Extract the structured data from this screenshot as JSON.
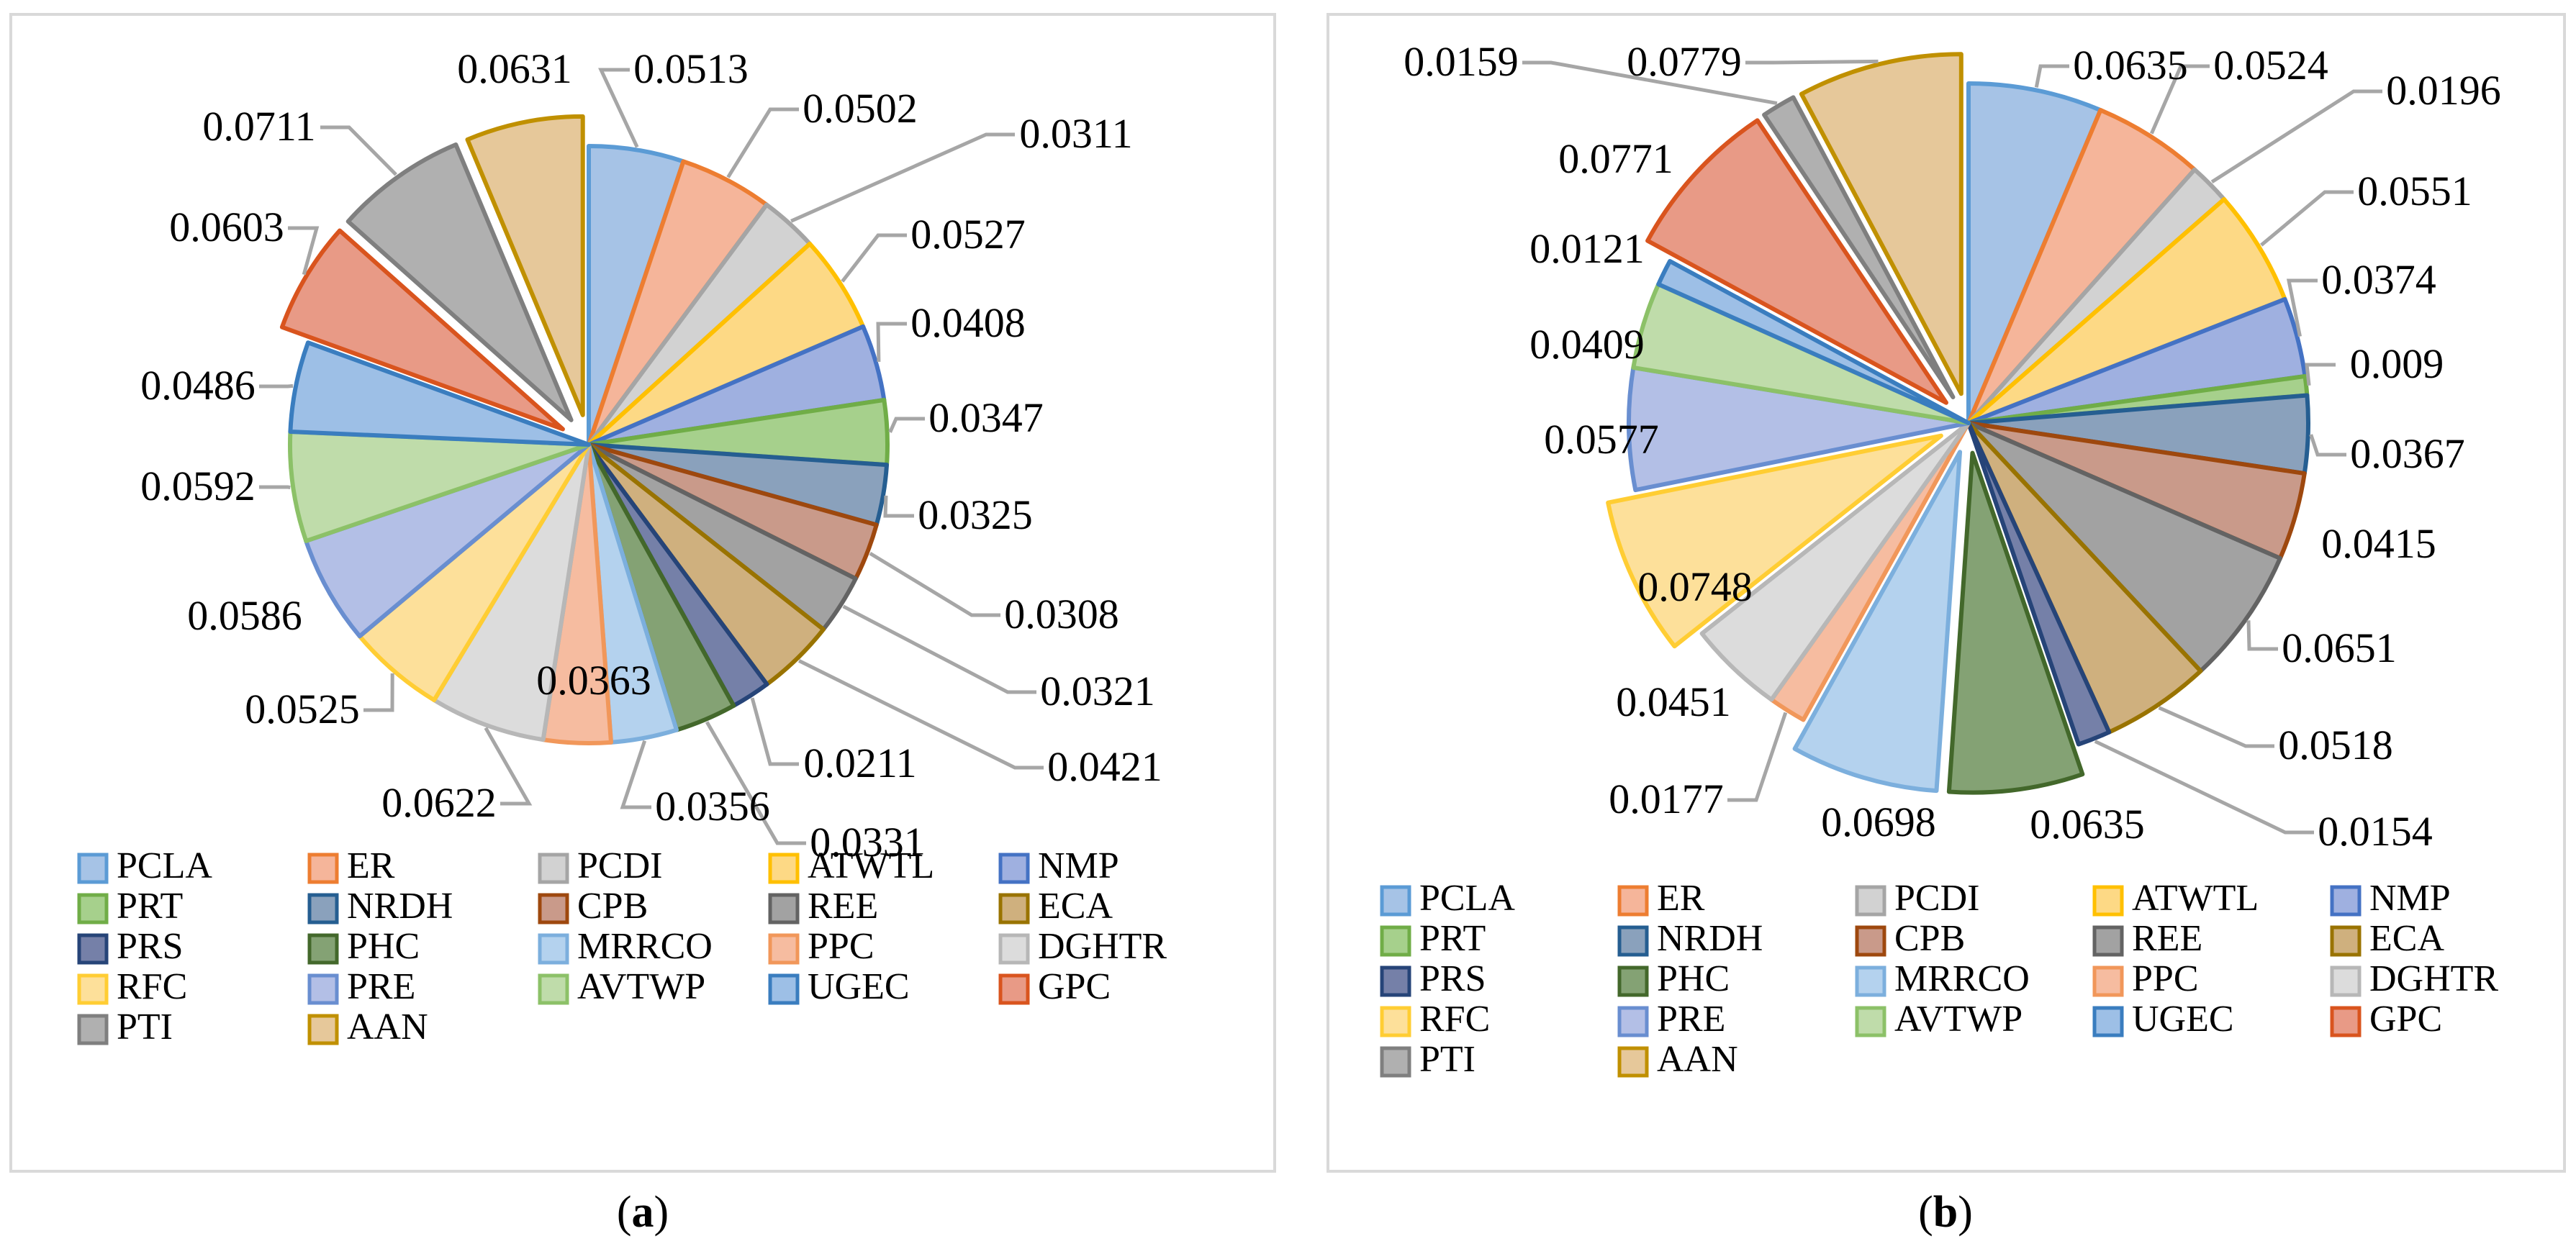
{
  "chart_data": [
    {
      "type": "pie",
      "panel_label": "(a)",
      "panel_letter": "a",
      "categories": [
        "PCLA",
        "ER",
        "PCDI",
        "ATWTL",
        "NMP",
        "PRT",
        "NRDH",
        "CPB",
        "REE",
        "ECA",
        "PRS",
        "PHC",
        "MRRCO",
        "PPC",
        "DGHTR",
        "RFC",
        "PRE",
        "AVTWP",
        "UGEC",
        "GPC",
        "PTI",
        "AAN"
      ],
      "values": [
        0.0513,
        0.0502,
        0.0311,
        0.0527,
        0.0408,
        0.0347,
        0.0325,
        0.0308,
        0.0321,
        0.0421,
        0.0211,
        0.0331,
        0.0356,
        0.0363,
        0.0622,
        0.0525,
        0.0586,
        0.0592,
        0.0486,
        0.0603,
        0.0711,
        0.0631
      ],
      "value_labels": [
        "0.0513",
        "0.0502",
        "0.0311",
        "0.0527",
        "0.0408",
        "0.0347",
        "0.0325",
        "0.0308",
        "0.0321",
        "0.0421",
        "0.0211",
        "0.0331",
        "0.0356",
        "0.0363",
        "0.0622",
        "0.0525",
        "0.0586",
        "0.0592",
        "0.0486",
        "0.0603",
        "0.0711",
        "0.0631"
      ],
      "exploded": [
        "GPC",
        "PTI",
        "AAN"
      ],
      "legend_position": "bottom"
    },
    {
      "type": "pie",
      "panel_label": "(b)",
      "panel_letter": "b",
      "categories": [
        "PCLA",
        "ER",
        "PCDI",
        "ATWTL",
        "NMP",
        "PRT",
        "NRDH",
        "CPB",
        "REE",
        "ECA",
        "PRS",
        "PHC",
        "MRRCO",
        "PPC",
        "DGHTR",
        "RFC",
        "PRE",
        "AVTWP",
        "UGEC",
        "GPC",
        "PTI",
        "AAN"
      ],
      "values": [
        0.0635,
        0.0524,
        0.0196,
        0.0551,
        0.0374,
        0.009,
        0.0367,
        0.0415,
        0.0651,
        0.0518,
        0.0154,
        0.0635,
        0.0698,
        0.0177,
        0.0451,
        0.0748,
        0.0577,
        0.0409,
        0.0121,
        0.0771,
        0.0159,
        0.0779
      ],
      "value_labels": [
        "0.0635",
        "0.0524",
        "0.0196",
        "0.0551",
        "0.0374",
        "0.009",
        "0.0367",
        "0.0415",
        "0.0651",
        "0.0518",
        "0.0154",
        "0.0635",
        "0.0698",
        "0.0177",
        "0.0451",
        "0.0748",
        "0.0577",
        "0.0409",
        "0.0121",
        "0.0771",
        "0.0159",
        "0.0779"
      ],
      "exploded": [
        "PHC",
        "MRRCO",
        "RFC",
        "GPC",
        "PTI",
        "AAN"
      ],
      "legend_position": "bottom"
    }
  ],
  "colors": {
    "fills": [
      "#a6c3e6",
      "#f5b59a",
      "#d2d2d2",
      "#fdd985",
      "#9fb0e0",
      "#a6d08c",
      "#8aa1bc",
      "#c99a8a",
      "#a2a2a2",
      "#cfb07e",
      "#7580a8",
      "#84a274",
      "#b4d2ee",
      "#f6bca0",
      "#dcdcdc",
      "#fde09a",
      "#b3bfe6",
      "#bfdcaa",
      "#9dbfe6",
      "#e89a86",
      "#b0b0b0",
      "#e6c89a"
    ],
    "strokes": [
      "#5b9bd5",
      "#ed7d31",
      "#a5a5a5",
      "#ffc000",
      "#4472c4",
      "#70ad47",
      "#255e91",
      "#9e480e",
      "#636363",
      "#997300",
      "#264478",
      "#43682b",
      "#7cafdd",
      "#f1975a",
      "#b7b7b7",
      "#ffcd33",
      "#698ed0",
      "#8cc168",
      "#3a7dbf",
      "#d9541e",
      "#7f7f7f",
      "#c09000"
    ]
  }
}
